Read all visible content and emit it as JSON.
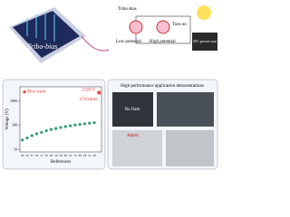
{
  "top": {
    "tribo_bias_left": "Tribo-bias",
    "tribo_bias_circuit": "Tribo-bias",
    "low_potential": "Low potential",
    "high_potential": "High potential",
    "turn_on": "Turn on",
    "dc_power_out": "DC power out"
  },
  "chart_data": {
    "type": "scatter",
    "y_label": "Voltage (V)",
    "x_label": "References",
    "categories": [
      "29",
      "32",
      "37",
      "35",
      "17",
      "33",
      "26",
      "19",
      "34",
      "30",
      "31",
      "15",
      "36",
      "18",
      "12",
      "20"
    ],
    "series": [
      {
        "name": "References",
        "color": "#2e9e6a",
        "values": [
          25,
          30,
          38,
          45,
          52,
          60,
          68,
          75,
          82,
          90,
          97,
          104,
          110,
          117,
          124,
          130
        ]
      }
    ],
    "highlight": {
      "name": "This work",
      "value": 2324,
      "value_label": "2324 V",
      "color": "#e53935"
    },
    "annotation": "17.8 times",
    "log_y": true,
    "ylim": [
      8,
      4000
    ],
    "yticks": [
      10,
      100,
      1000
    ]
  },
  "demos": {
    "title": "High performance application demonstrations",
    "no_flash": "No flash",
    "alarm": "Alarm"
  }
}
